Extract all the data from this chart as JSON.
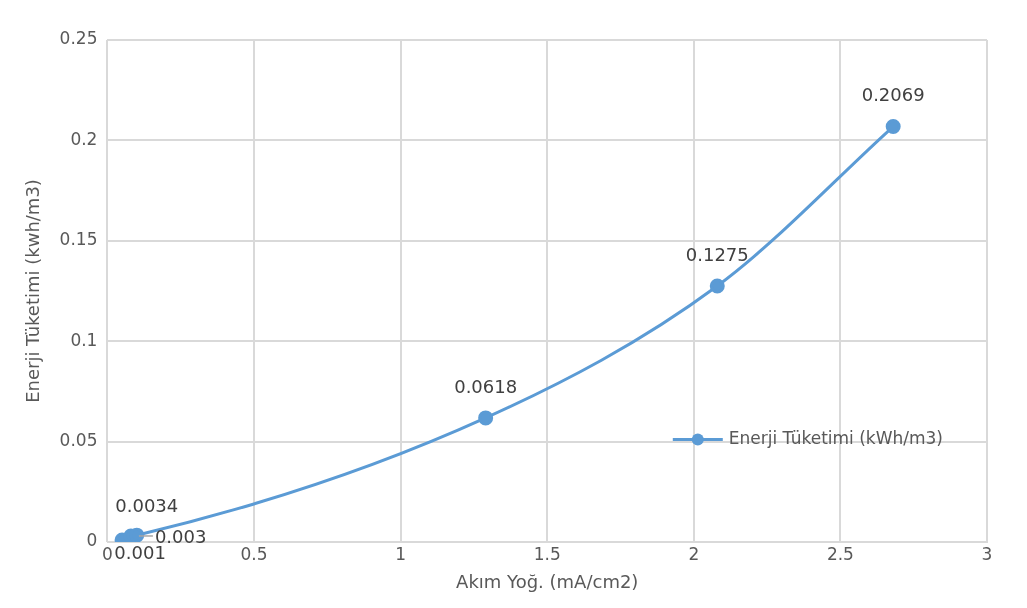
{
  "chart_data": {
    "type": "line",
    "xlabel": "Akım Yoğ. (mA/cm2)",
    "ylabel": "Enerji Tüketimi (kwh/m3)",
    "x": [
      0.05,
      0.08,
      0.1,
      1.29,
      2.08,
      2.68
    ],
    "series": [
      {
        "name": "Enerji Tüketimi (kWh/m3)",
        "color": "#5b9bd5",
        "values": [
          0.001,
          0.003,
          0.0034,
          0.0618,
          0.1275,
          0.2069
        ]
      }
    ],
    "xlim": [
      0,
      3
    ],
    "xticks": [
      0,
      0.5,
      1,
      1.5,
      2,
      2.5,
      3
    ],
    "ylim": [
      0,
      0.25
    ],
    "yticks": [
      0,
      0.05,
      0.1,
      0.15,
      0.2,
      0.25
    ],
    "grid": true,
    "legend": "right",
    "marker": "circle",
    "line_style": "solid",
    "data_labels": true
  }
}
